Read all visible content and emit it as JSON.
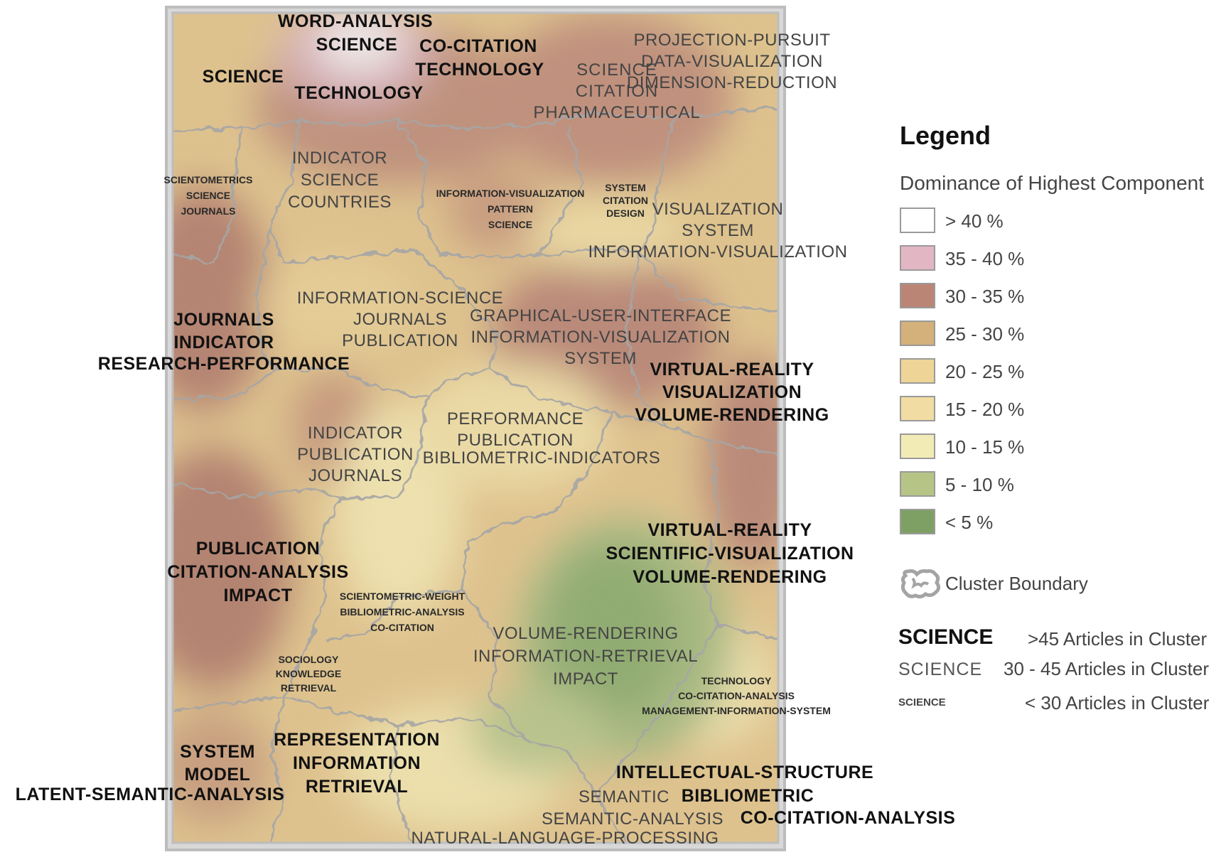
{
  "legend": {
    "title": "Legend",
    "subtitle": "Dominance of Highest Component",
    "classes": [
      {
        "label": "> 40 %",
        "color": "#ffffff"
      },
      {
        "label": "35 - 40 %",
        "color": "#e3b6c4"
      },
      {
        "label": "30 - 35 %",
        "color": "#bb8575"
      },
      {
        "label": "25 - 30 %",
        "color": "#d4b07a"
      },
      {
        "label": "20 - 25 %",
        "color": "#eed497"
      },
      {
        "label": "15 - 20 %",
        "color": "#f1dca3"
      },
      {
        "label": "10 - 15 %",
        "color": "#f3ebb6"
      },
      {
        "label": "5 - 10 %",
        "color": "#b6c486"
      },
      {
        "label": "< 5 %",
        "color": "#7ea065"
      }
    ],
    "cluster_boundary_label": "Cluster Boundary",
    "sizes": [
      {
        "sample": "SCIENCE",
        "desc": ">45 Articles in Cluster"
      },
      {
        "sample": "SCIENCE",
        "desc": "30 - 45 Articles in Cluster"
      },
      {
        "sample": "SCIENCE",
        "desc": "< 30 Articles in Cluster"
      }
    ]
  },
  "labels": [
    {
      "id": "l01",
      "size": "big",
      "lines": [
        "WORD-ANALYSIS"
      ]
    },
    {
      "id": "l02",
      "size": "big",
      "lines": [
        "SCIENCE"
      ]
    },
    {
      "id": "l03",
      "size": "big",
      "lines": [
        "CO-CITATION"
      ]
    },
    {
      "id": "l04",
      "size": "big",
      "lines": [
        "TECHNOLOGY"
      ]
    },
    {
      "id": "l05",
      "size": "big",
      "lines": [
        "SCIENCE"
      ]
    },
    {
      "id": "l06",
      "size": "big",
      "lines": [
        "TECHNOLOGY"
      ]
    },
    {
      "id": "l07",
      "size": "med",
      "lines": [
        "SCIENCE",
        "CITATION",
        "PHARMACEUTICAL"
      ]
    },
    {
      "id": "l08",
      "size": "med",
      "lines": [
        "PROJECTION-PURSUIT",
        "DATA-VISUALIZATION",
        "DIMENSION-REDUCTION"
      ]
    },
    {
      "id": "l09",
      "size": "sml",
      "lines": [
        "SCIENTOMETRICS",
        "SCIENCE",
        "JOURNALS"
      ]
    },
    {
      "id": "l10",
      "size": "med",
      "lines": [
        "INDICATOR",
        "SCIENCE",
        "COUNTRIES"
      ]
    },
    {
      "id": "l11",
      "size": "sml",
      "lines": [
        "INFORMATION-VISUALIZATION",
        "PATTERN",
        "SCIENCE"
      ]
    },
    {
      "id": "l12",
      "size": "sml",
      "lines": [
        "SYSTEM",
        "CITATION",
        "DESIGN"
      ]
    },
    {
      "id": "l13",
      "size": "med",
      "lines": [
        "VISUALIZATION",
        "SYSTEM",
        "INFORMATION-VISUALIZATION"
      ]
    },
    {
      "id": "l14",
      "size": "med",
      "lines": [
        "INFORMATION-SCIENCE",
        "JOURNALS",
        "PUBLICATION"
      ]
    },
    {
      "id": "l15",
      "size": "big",
      "lines": [
        "JOURNALS",
        "INDICATOR"
      ]
    },
    {
      "id": "l16",
      "size": "big",
      "lines": [
        "RESEARCH-PERFORMANCE"
      ]
    },
    {
      "id": "l17",
      "size": "med",
      "lines": [
        "GRAPHICAL-USER-INTERFACE",
        "INFORMATION-VISUALIZATION",
        "SYSTEM"
      ]
    },
    {
      "id": "l18",
      "size": "big",
      "lines": [
        "VIRTUAL-REALITY",
        "VISUALIZATION",
        "VOLUME-RENDERING"
      ]
    },
    {
      "id": "l19",
      "size": "med",
      "lines": [
        "PERFORMANCE",
        "PUBLICATION"
      ]
    },
    {
      "id": "l20",
      "size": "med",
      "lines": [
        "BIBLIOMETRIC-INDICATORS"
      ]
    },
    {
      "id": "l21",
      "size": "med",
      "lines": [
        "INDICATOR",
        "PUBLICATION",
        "JOURNALS"
      ]
    },
    {
      "id": "l22",
      "size": "big",
      "lines": [
        "VIRTUAL-REALITY",
        "SCIENTIFIC-VISUALIZATION",
        "VOLUME-RENDERING"
      ]
    },
    {
      "id": "l23",
      "size": "big",
      "lines": [
        "PUBLICATION",
        "CITATION-ANALYSIS",
        "IMPACT"
      ]
    },
    {
      "id": "l24",
      "size": "sml",
      "lines": [
        "SCIENTOMETRIC-WEIGHT",
        "BIBLIOMETRIC-ANALYSIS",
        "CO-CITATION"
      ]
    },
    {
      "id": "l25",
      "size": "med",
      "lines": [
        "VOLUME-RENDERING",
        "INFORMATION-RETRIEVAL",
        "IMPACT"
      ]
    },
    {
      "id": "l26",
      "size": "sml",
      "lines": [
        "SOCIOLOGY",
        "KNOWLEDGE",
        "RETRIEVAL"
      ]
    },
    {
      "id": "l27",
      "size": "sml",
      "lines": [
        "TECHNOLOGY",
        "CO-CITATION-ANALYSIS",
        "MANAGEMENT-INFORMATION-SYSTEM"
      ]
    },
    {
      "id": "l28",
      "size": "big",
      "lines": [
        "SYSTEM",
        "MODEL"
      ]
    },
    {
      "id": "l29",
      "size": "big",
      "lines": [
        "LATENT-SEMANTIC-ANALYSIS"
      ]
    },
    {
      "id": "l30",
      "size": "big",
      "lines": [
        "REPRESENTATION",
        "INFORMATION",
        "RETRIEVAL"
      ]
    },
    {
      "id": "l31",
      "size": "big",
      "lines": [
        "INTELLECTUAL-STRUCTURE"
      ]
    },
    {
      "id": "l32",
      "size": "med",
      "lines": [
        "SEMANTIC"
      ]
    },
    {
      "id": "l33",
      "size": "big",
      "lines": [
        "BIBLIOMETRIC"
      ]
    },
    {
      "id": "l34",
      "size": "med",
      "lines": [
        "SEMANTIC-ANALYSIS"
      ]
    },
    {
      "id": "l35",
      "size": "big",
      "lines": [
        "CO-CITATION-ANALYSIS"
      ]
    },
    {
      "id": "l36",
      "size": "med",
      "lines": [
        "NATURAL-LANGUAGE-PROCESSING"
      ]
    }
  ]
}
